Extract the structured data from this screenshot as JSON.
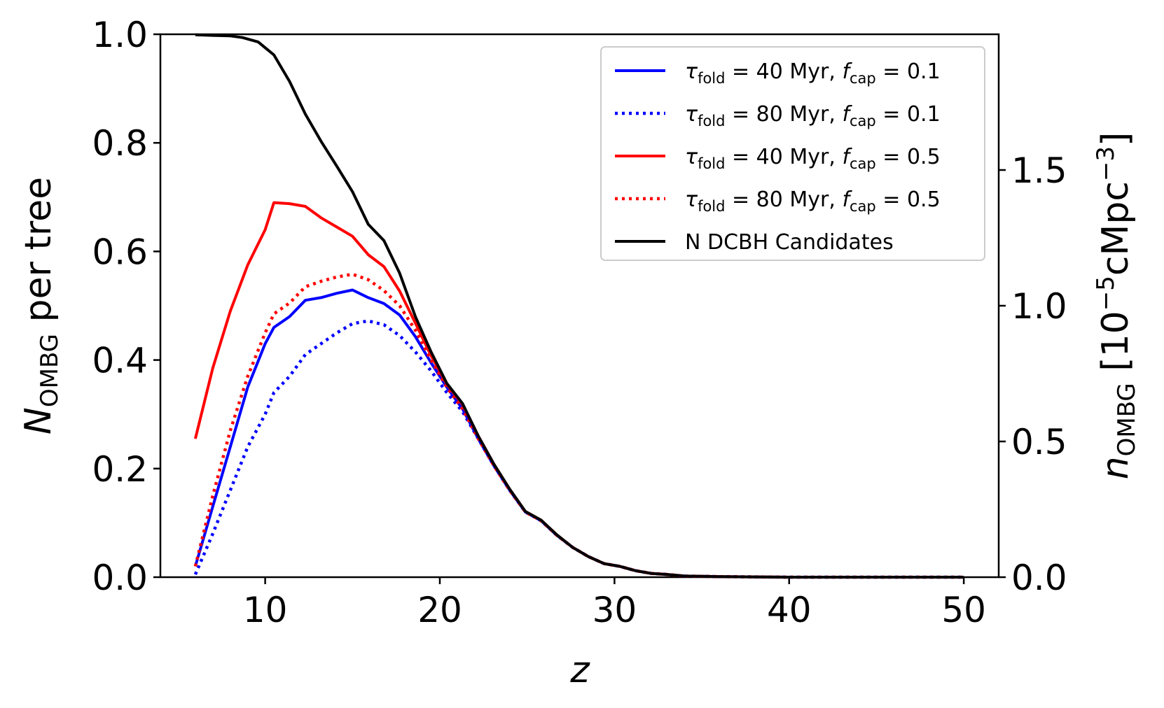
{
  "chart_data": {
    "type": "line",
    "title": "",
    "xlabel": "z",
    "ylabel": "N_OMBG per tree",
    "ylabel_parts": {
      "symbol": "N",
      "subscript": "OMBG",
      "rest": " per tree"
    },
    "y2label": "n_OMBG [10^-5 cMpc^-3]",
    "y2label_parts": {
      "symbol": "n",
      "subscript": "OMBG",
      "bracket_open": " [10",
      "exponent": "−5",
      "unit": "cMpc",
      "unit_exponent": "−3",
      "bracket_close": "]"
    },
    "xlim": [
      4,
      52
    ],
    "ylim": [
      0,
      1.0
    ],
    "y2lim": [
      0,
      2.0
    ],
    "xticks": [
      "10",
      "20",
      "30",
      "40",
      "50"
    ],
    "yticks": [
      "0.0",
      "0.2",
      "0.4",
      "0.6",
      "0.8",
      "1.0"
    ],
    "y2ticks": [
      "0.0",
      "0.5",
      "1.0",
      "1.5"
    ],
    "legend_position": "top-right",
    "series": [
      {
        "name": "τ_fold = 40 Myr, f_cap = 0.1",
        "legend": {
          "tau": "τ",
          "tau_sub": "fold",
          "tau_val": " = 40 Myr, ",
          "f": "f",
          "f_sub": "cap",
          "f_val": " = 0.1"
        },
        "color": "#0000ff",
        "style": "solid",
        "x": [
          6,
          7,
          8,
          9,
          10,
          10.5,
          11.4,
          12.3,
          13.2,
          14.1,
          15,
          15.9,
          16.8,
          17.7,
          18.6,
          19.5,
          20.4,
          21.3,
          22.2,
          23.1,
          24,
          24.9,
          25.8,
          26.7,
          27.6,
          28.5,
          29.4,
          30.3,
          31.2,
          32.1,
          33,
          34,
          36,
          40,
          45,
          50
        ],
        "y": [
          0.02,
          0.13,
          0.24,
          0.35,
          0.43,
          0.46,
          0.48,
          0.51,
          0.515,
          0.523,
          0.529,
          0.515,
          0.504,
          0.483,
          0.443,
          0.395,
          0.35,
          0.31,
          0.255,
          0.205,
          0.16,
          0.12,
          0.104,
          0.077,
          0.055,
          0.038,
          0.025,
          0.02,
          0.012,
          0.007,
          0.005,
          0.002,
          0.001,
          0,
          0,
          0
        ]
      },
      {
        "name": "τ_fold = 80 Myr, f_cap = 0.1",
        "legend": {
          "tau": "τ",
          "tau_sub": "fold",
          "tau_val": " = 80 Myr, ",
          "f": "f",
          "f_sub": "cap",
          "f_val": " = 0.1"
        },
        "color": "#0000ff",
        "style": "dotted",
        "x": [
          6,
          7,
          8,
          9,
          10,
          10.5,
          11.4,
          12.3,
          13.2,
          14.1,
          15,
          15.9,
          16.8,
          17.7,
          18.6,
          19.5,
          20.4,
          21.3,
          22.2,
          23.1,
          24,
          24.9,
          25.8,
          26.7,
          27.6,
          28.5,
          29.4,
          30.3,
          31.2,
          32.1,
          33,
          34,
          36,
          40,
          45,
          50
        ],
        "y": [
          0.005,
          0.08,
          0.16,
          0.24,
          0.3,
          0.34,
          0.37,
          0.41,
          0.43,
          0.45,
          0.467,
          0.472,
          0.465,
          0.445,
          0.415,
          0.38,
          0.34,
          0.305,
          0.255,
          0.205,
          0.16,
          0.12,
          0.104,
          0.077,
          0.055,
          0.038,
          0.025,
          0.02,
          0.012,
          0.007,
          0.005,
          0.002,
          0.001,
          0,
          0,
          0
        ]
      },
      {
        "name": "τ_fold = 40 Myr, f_cap = 0.5",
        "legend": {
          "tau": "τ",
          "tau_sub": "fold",
          "tau_val": " = 40 Myr, ",
          "f": "f",
          "f_sub": "cap",
          "f_val": " = 0.5"
        },
        "color": "#ff0000",
        "style": "solid",
        "x": [
          6,
          7,
          8,
          9,
          10,
          10.5,
          11.4,
          12.3,
          13.2,
          14.1,
          15,
          15.9,
          16.8,
          17.7,
          18.6,
          19.5,
          20.4,
          21.3,
          22.2,
          23.1,
          24,
          24.9,
          25.8,
          26.7,
          27.6,
          28.5,
          29.4,
          30.3,
          31.2,
          32.1,
          33,
          34,
          36,
          40,
          45,
          50
        ],
        "y": [
          0.255,
          0.385,
          0.49,
          0.575,
          0.64,
          0.69,
          0.688,
          0.683,
          0.662,
          0.645,
          0.628,
          0.594,
          0.572,
          0.527,
          0.468,
          0.408,
          0.355,
          0.318,
          0.26,
          0.208,
          0.162,
          0.121,
          0.105,
          0.078,
          0.055,
          0.038,
          0.025,
          0.02,
          0.012,
          0.007,
          0.005,
          0.002,
          0.001,
          0,
          0,
          0
        ]
      },
      {
        "name": "τ_fold = 80 Myr, f_cap = 0.5",
        "legend": {
          "tau": "τ",
          "tau_sub": "fold",
          "tau_val": " = 80 Myr, ",
          "f": "f",
          "f_sub": "cap",
          "f_val": " = 0.5"
        },
        "color": "#ff0000",
        "style": "dotted",
        "x": [
          6,
          7,
          8,
          9,
          10,
          10.5,
          11.4,
          12.3,
          13.2,
          14.1,
          15,
          15.9,
          16.8,
          17.7,
          18.6,
          19.5,
          20.4,
          21.3,
          22.2,
          23.1,
          24,
          24.9,
          25.8,
          26.7,
          27.6,
          28.5,
          29.4,
          30.3,
          31.2,
          32.1,
          33,
          34,
          36,
          40,
          45,
          50
        ],
        "y": [
          0.02,
          0.15,
          0.27,
          0.37,
          0.45,
          0.485,
          0.505,
          0.535,
          0.545,
          0.553,
          0.558,
          0.548,
          0.528,
          0.5,
          0.455,
          0.4,
          0.35,
          0.31,
          0.255,
          0.205,
          0.16,
          0.12,
          0.104,
          0.077,
          0.055,
          0.038,
          0.025,
          0.02,
          0.012,
          0.007,
          0.005,
          0.002,
          0.001,
          0,
          0,
          0
        ]
      },
      {
        "name": "N DCBH Candidates",
        "legend": {
          "plain": "N DCBH Candidates"
        },
        "color": "#000000",
        "style": "solid",
        "x": [
          6,
          7,
          8,
          8.7,
          9.6,
          10.5,
          11.4,
          12.3,
          13.2,
          14.1,
          15,
          15.9,
          16.8,
          17.7,
          18.6,
          19.5,
          20.4,
          21.3,
          22.2,
          23.1,
          24,
          24.9,
          25.8,
          26.7,
          27.6,
          28.5,
          29.4,
          30.3,
          31.2,
          32.1,
          33,
          34,
          36,
          40,
          45,
          50
        ],
        "y": [
          0.999,
          0.998,
          0.997,
          0.994,
          0.986,
          0.962,
          0.913,
          0.853,
          0.803,
          0.757,
          0.71,
          0.65,
          0.62,
          0.56,
          0.48,
          0.415,
          0.357,
          0.32,
          0.26,
          0.208,
          0.162,
          0.121,
          0.105,
          0.078,
          0.055,
          0.038,
          0.025,
          0.02,
          0.012,
          0.007,
          0.005,
          0.002,
          0.001,
          0,
          0,
          0
        ]
      }
    ]
  }
}
